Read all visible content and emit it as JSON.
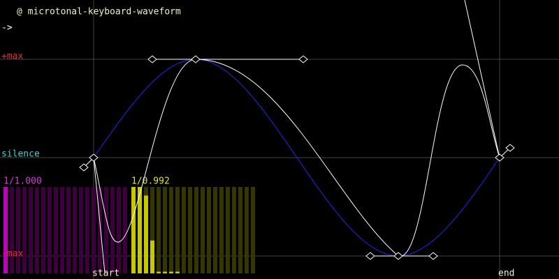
{
  "header": {
    "title": "@ microtonal-keyboard-waveform",
    "back": "->"
  },
  "labels": {
    "max": "+max",
    "silence": "silence",
    "min": "-max",
    "start": "start",
    "end": "end"
  },
  "panels": [
    {
      "label": "1/1.000",
      "levels": [
        1,
        0,
        0,
        0,
        0,
        0,
        0,
        0,
        0,
        0,
        0,
        0,
        0,
        0,
        0,
        0,
        0,
        0,
        0,
        0
      ]
    },
    {
      "label": "1/0.992",
      "levels": [
        1,
        1,
        0.9,
        0.38,
        0.02,
        0.02,
        0.02,
        0.02,
        0,
        0,
        0,
        0,
        0,
        0,
        0,
        0,
        0,
        0,
        0,
        0
      ]
    }
  ]
}
